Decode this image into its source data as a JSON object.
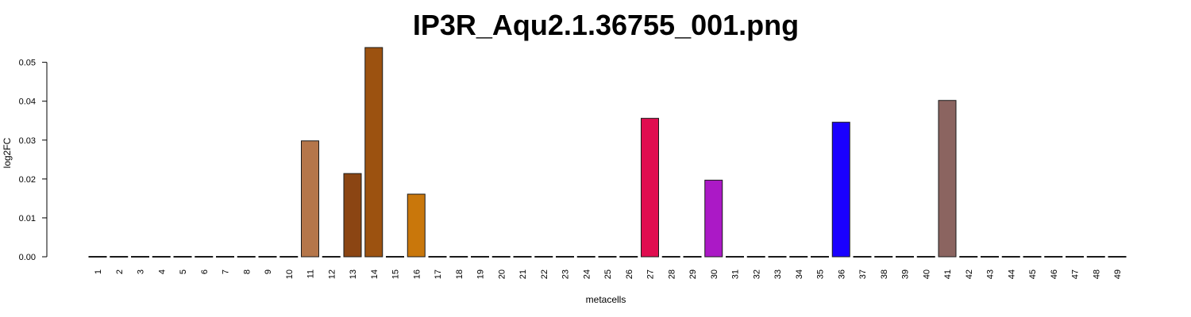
{
  "chart_data": {
    "type": "bar",
    "title": "IP3R_Aqu2.1.36755_001.png",
    "xlabel": "metacells",
    "ylabel": "log2FC",
    "ylim": [
      0,
      0.054
    ],
    "yticks": [
      "0.00",
      "0.01",
      "0.02",
      "0.03",
      "0.04",
      "0.05"
    ],
    "ytick_values": [
      0,
      0.01,
      0.02,
      0.03,
      0.04,
      0.05
    ],
    "grid": false,
    "categories": [
      "1",
      "2",
      "3",
      "4",
      "5",
      "6",
      "7",
      "8",
      "9",
      "10",
      "11",
      "12",
      "13",
      "14",
      "15",
      "16",
      "17",
      "18",
      "19",
      "20",
      "21",
      "22",
      "23",
      "24",
      "25",
      "26",
      "27",
      "28",
      "29",
      "30",
      "31",
      "32",
      "33",
      "34",
      "35",
      "36",
      "37",
      "38",
      "39",
      "40",
      "41",
      "42",
      "43",
      "44",
      "45",
      "46",
      "47",
      "48",
      "49"
    ],
    "values": [
      0,
      0,
      0,
      0,
      0,
      0,
      0,
      0,
      0,
      0,
      0.0298,
      0,
      0.0214,
      0.0538,
      0,
      0.0161,
      0,
      0,
      0,
      0,
      0,
      0,
      0,
      0,
      0,
      0,
      0.0356,
      0,
      0,
      0.0197,
      0,
      0,
      0,
      0,
      0,
      0.0346,
      0,
      0,
      0,
      0,
      0.0402,
      0,
      0,
      0,
      0,
      0,
      0,
      0,
      0
    ],
    "colors": {
      "11": "#b5764a",
      "13": "#8b4513",
      "14": "#9c5210",
      "16": "#c9770b",
      "27": "#e00d50",
      "30": "#ab19c6",
      "36": "#1a00ff",
      "41": "#8b6460"
    },
    "default_color": "#cccccc"
  }
}
